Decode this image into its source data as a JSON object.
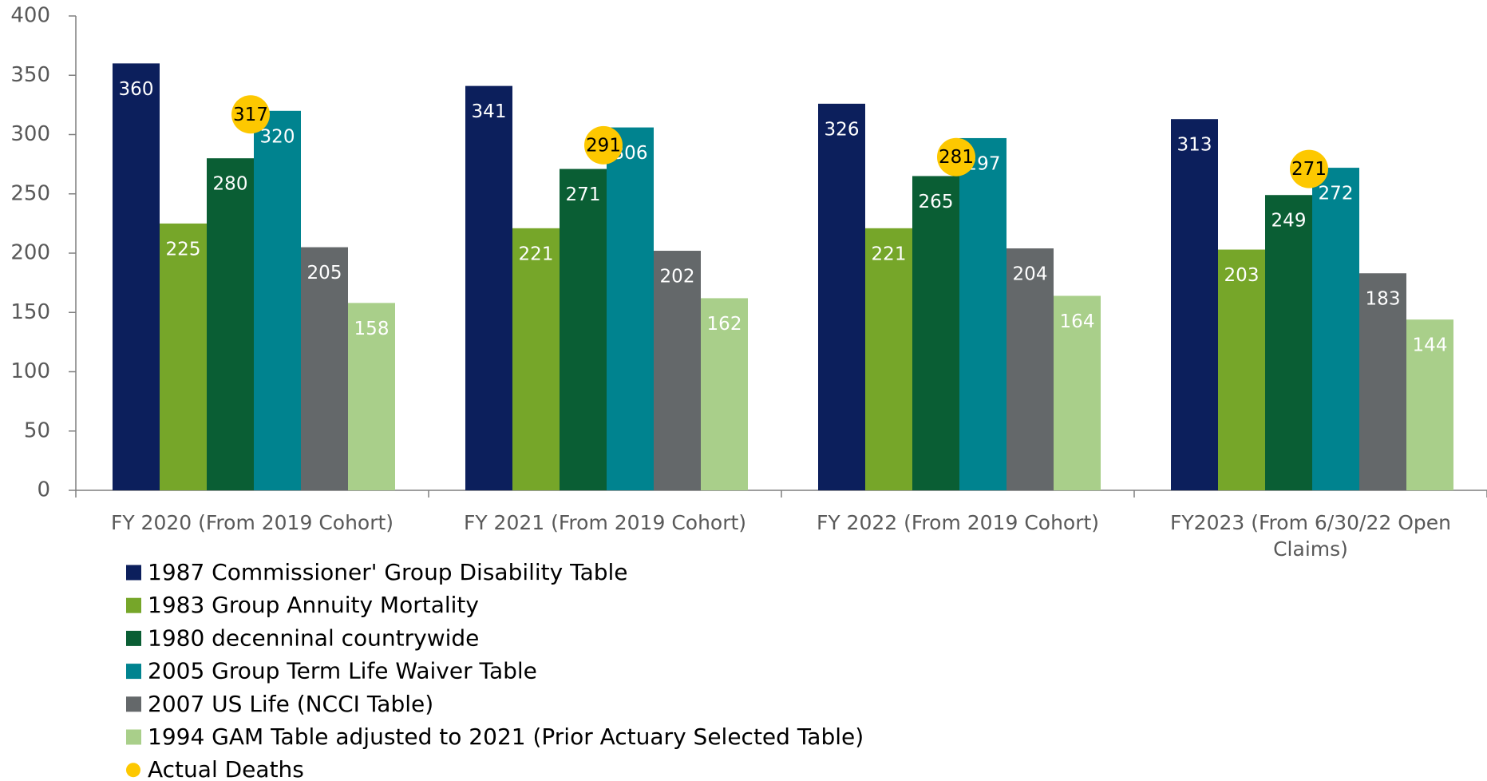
{
  "chart_data": {
    "type": "bar",
    "categories": [
      "FY 2020 (From 2019 Cohort)",
      "FY 2021 (From 2019 Cohort)",
      "FY 2022 (From 2019 Cohort)",
      "FY2023 (From 6/30/22 Open Claims)"
    ],
    "series": [
      {
        "name": "1987 Commissioner' Group Disability Table",
        "color": "#0c1f5c",
        "values": [
          360,
          341,
          326,
          313
        ]
      },
      {
        "name": "1983 Group Annuity Mortality",
        "color": "#76a629",
        "values": [
          225,
          221,
          221,
          203
        ]
      },
      {
        "name": "1980 decenninal countrywide",
        "color": "#0a5e34",
        "values": [
          280,
          271,
          265,
          249
        ]
      },
      {
        "name": "2005 Group Term Life Waiver Table",
        "color": "#00838f",
        "values": [
          320,
          306,
          297,
          272
        ]
      },
      {
        "name": "2007 US Life (NCCI Table)",
        "color": "#64686a",
        "values": [
          205,
          202,
          204,
          183
        ]
      },
      {
        "name": "1994 GAM Table adjusted to 2021 (Prior Actuary Selected Table)",
        "color": "#a9cf8a",
        "values": [
          158,
          162,
          164,
          144
        ]
      },
      {
        "name": "Actual Deaths",
        "color": "#fdc800",
        "type": "scatter",
        "values": [
          317,
          291,
          281,
          271
        ]
      }
    ],
    "ylim": [
      0,
      400
    ],
    "yticks": [
      0,
      50,
      100,
      150,
      200,
      250,
      300,
      350,
      400
    ],
    "grid": false
  }
}
